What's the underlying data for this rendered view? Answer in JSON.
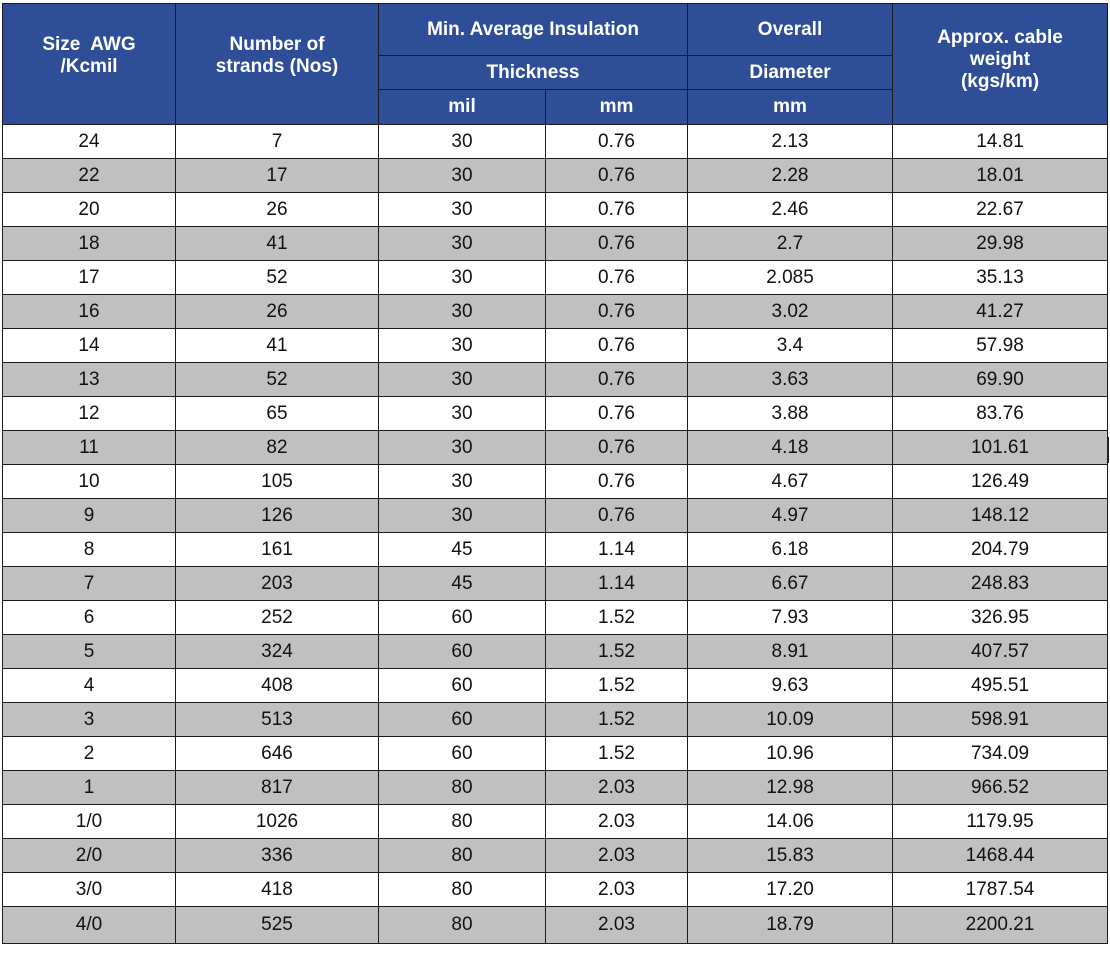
{
  "headers": {
    "size": [
      "Size  AWG",
      "/Kcmil"
    ],
    "strands": [
      "Number of",
      "strands (Nos)"
    ],
    "insulation_top": "Min. Average Insulation",
    "insulation_mid": "Thickness",
    "unit_mil": "mil",
    "unit_mm": "mm",
    "diameter_top": "Overall",
    "diameter_mid": "Diameter",
    "diameter_unit": "mm",
    "weight": [
      "Approx. cable",
      "weight",
      "(kgs/km)"
    ]
  },
  "rows": [
    {
      "size": "24",
      "strands": "7",
      "mil": "30",
      "mm": "0.76",
      "diameter": "2.13",
      "weight": "14.81"
    },
    {
      "size": "22",
      "strands": "17",
      "mil": "30",
      "mm": "0.76",
      "diameter": "2.28",
      "weight": "18.01"
    },
    {
      "size": "20",
      "strands": "26",
      "mil": "30",
      "mm": "0.76",
      "diameter": "2.46",
      "weight": "22.67"
    },
    {
      "size": "18",
      "strands": "41",
      "mil": "30",
      "mm": "0.76",
      "diameter": "2.7",
      "weight": "29.98"
    },
    {
      "size": "17",
      "strands": "52",
      "mil": "30",
      "mm": "0.76",
      "diameter": "2.085",
      "weight": "35.13"
    },
    {
      "size": "16",
      "strands": "26",
      "mil": "30",
      "mm": "0.76",
      "diameter": "3.02",
      "weight": "41.27"
    },
    {
      "size": "14",
      "strands": "41",
      "mil": "30",
      "mm": "0.76",
      "diameter": "3.4",
      "weight": "57.98"
    },
    {
      "size": "13",
      "strands": "52",
      "mil": "30",
      "mm": "0.76",
      "diameter": "3.63",
      "weight": "69.90"
    },
    {
      "size": "12",
      "strands": "65",
      "mil": "30",
      "mm": "0.76",
      "diameter": "3.88",
      "weight": "83.76"
    },
    {
      "size": "11",
      "strands": "82",
      "mil": "30",
      "mm": "0.76",
      "diameter": "4.18",
      "weight": "101.61"
    },
    {
      "size": "10",
      "strands": "105",
      "mil": "30",
      "mm": "0.76",
      "diameter": "4.67",
      "weight": "126.49"
    },
    {
      "size": "9",
      "strands": "126",
      "mil": "30",
      "mm": "0.76",
      "diameter": "4.97",
      "weight": "148.12"
    },
    {
      "size": "8",
      "strands": "161",
      "mil": "45",
      "mm": "1.14",
      "diameter": "6.18",
      "weight": "204.79"
    },
    {
      "size": "7",
      "strands": "203",
      "mil": "45",
      "mm": "1.14",
      "diameter": "6.67",
      "weight": "248.83"
    },
    {
      "size": "6",
      "strands": "252",
      "mil": "60",
      "mm": "1.52",
      "diameter": "7.93",
      "weight": "326.95"
    },
    {
      "size": "5",
      "strands": "324",
      "mil": "60",
      "mm": "1.52",
      "diameter": "8.91",
      "weight": "407.57"
    },
    {
      "size": "4",
      "strands": "408",
      "mil": "60",
      "mm": "1.52",
      "diameter": "9.63",
      "weight": "495.51"
    },
    {
      "size": "3",
      "strands": "513",
      "mil": "60",
      "mm": "1.52",
      "diameter": "10.09",
      "weight": "598.91"
    },
    {
      "size": "2",
      "strands": "646",
      "mil": "60",
      "mm": "1.52",
      "diameter": "10.96",
      "weight": "734.09"
    },
    {
      "size": "1",
      "strands": "817",
      "mil": "80",
      "mm": "2.03",
      "diameter": "12.98",
      "weight": "966.52"
    },
    {
      "size": "1/0",
      "strands": "1026",
      "mil": "80",
      "mm": "2.03",
      "diameter": "14.06",
      "weight": "1179.95"
    },
    {
      "size": "2/0",
      "strands": "336",
      "mil": "80",
      "mm": "2.03",
      "diameter": "15.83",
      "weight": "1468.44"
    },
    {
      "size": "3/0",
      "strands": "418",
      "mil": "80",
      "mm": "2.03",
      "diameter": "17.20",
      "weight": "1787.54"
    },
    {
      "size": "4/0",
      "strands": "525",
      "mil": "80",
      "mm": "2.03",
      "diameter": "18.79",
      "weight": "2200.21"
    }
  ],
  "colors": {
    "header_bg": "#2e4f97",
    "header_text": "#ffffff",
    "row_alt_bg": "#c0c0c0",
    "row_bg": "#ffffff",
    "border": "#1c1c1c"
  }
}
